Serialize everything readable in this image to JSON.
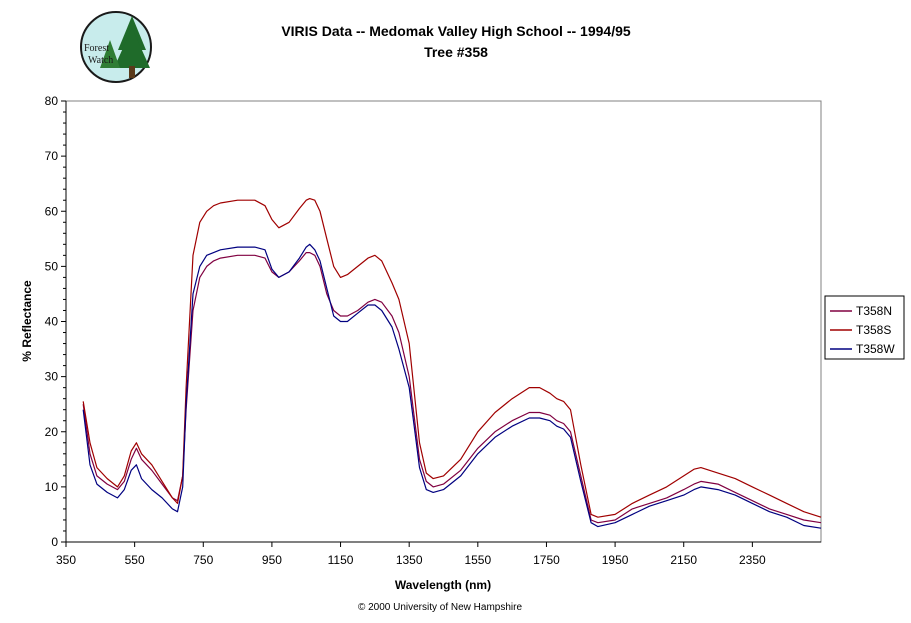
{
  "chart_data": {
    "type": "line",
    "title": "VIRIS Data -- Medomak Valley High School -- 1994/95",
    "subtitle": "Tree #358",
    "xlabel": "Wavelength (nm)",
    "ylabel": "% Reflectance",
    "xlim": [
      350,
      2550
    ],
    "ylim": [
      0,
      80
    ],
    "x_ticks": [
      "350",
      "550",
      "750",
      "950",
      "1150",
      "1350",
      "1550",
      "1750",
      "1950",
      "2150",
      "2350"
    ],
    "y_ticks": [
      "0",
      "10",
      "20",
      "30",
      "40",
      "50",
      "60",
      "70",
      "80"
    ],
    "grid": false,
    "legend_position": "right",
    "series": [
      {
        "name": "T358N",
        "color": "#800040",
        "x": [
          400,
          420,
          440,
          470,
          500,
          520,
          540,
          555,
          570,
          600,
          630,
          660,
          675,
          690,
          700,
          720,
          740,
          760,
          780,
          800,
          850,
          900,
          930,
          950,
          970,
          1000,
          1030,
          1050,
          1060,
          1075,
          1090,
          1110,
          1130,
          1150,
          1170,
          1200,
          1230,
          1250,
          1270,
          1300,
          1320,
          1350,
          1380,
          1400,
          1420,
          1450,
          1500,
          1550,
          1600,
          1650,
          1700,
          1730,
          1760,
          1780,
          1800,
          1820,
          1850,
          1880,
          1900,
          1950,
          2000,
          2050,
          2100,
          2150,
          2180,
          2200,
          2250,
          2300,
          2350,
          2400,
          2450,
          2500,
          2550
        ],
        "y": [
          25,
          16,
          12,
          10.5,
          9.5,
          11,
          15,
          17,
          15,
          13,
          10.5,
          8,
          7.5,
          12,
          24,
          42,
          48,
          50,
          51,
          51.5,
          52,
          52,
          51.5,
          49,
          48,
          49,
          51,
          52.5,
          52.5,
          52,
          50,
          45,
          42,
          41,
          41,
          42,
          43.5,
          44,
          43.5,
          41,
          38,
          30,
          15,
          11,
          10,
          10.5,
          13,
          17,
          20,
          22,
          23.5,
          23.5,
          23,
          22,
          21.5,
          20,
          12,
          4,
          3.5,
          4,
          6,
          7,
          8,
          9.5,
          10.5,
          11,
          10.5,
          9,
          7.5,
          6,
          5,
          4,
          3.5
        ]
      },
      {
        "name": "T358S",
        "color": "#a00000",
        "x": [
          400,
          420,
          440,
          470,
          500,
          520,
          540,
          555,
          570,
          600,
          630,
          660,
          675,
          690,
          700,
          720,
          740,
          760,
          780,
          800,
          850,
          900,
          930,
          950,
          970,
          1000,
          1030,
          1050,
          1060,
          1075,
          1090,
          1110,
          1130,
          1150,
          1170,
          1200,
          1230,
          1250,
          1270,
          1300,
          1320,
          1350,
          1380,
          1400,
          1420,
          1450,
          1500,
          1550,
          1600,
          1650,
          1700,
          1730,
          1760,
          1780,
          1800,
          1820,
          1850,
          1880,
          1900,
          1950,
          2000,
          2050,
          2100,
          2150,
          2180,
          2200,
          2250,
          2300,
          2350,
          2400,
          2450,
          2500,
          2550
        ],
        "y": [
          25.5,
          18,
          13.5,
          11.5,
          10,
          12,
          16.5,
          18,
          16,
          14,
          11,
          8,
          7,
          12,
          28,
          52,
          58,
          60,
          61,
          61.5,
          62,
          62,
          61,
          58.5,
          57,
          58,
          60.5,
          62,
          62.3,
          62,
          60,
          55,
          50,
          48,
          48.5,
          50,
          51.5,
          52,
          51,
          47,
          44,
          36,
          18,
          12.5,
          11.5,
          12,
          15,
          20,
          23.5,
          26,
          28,
          28,
          27,
          26,
          25.5,
          24,
          14,
          5,
          4.5,
          5,
          7,
          8.5,
          10,
          12,
          13.2,
          13.5,
          12.5,
          11.5,
          10,
          8.5,
          7,
          5.5,
          4.5
        ]
      },
      {
        "name": "T358W",
        "color": "#000080",
        "x": [
          400,
          420,
          440,
          470,
          500,
          520,
          540,
          555,
          570,
          600,
          630,
          660,
          675,
          690,
          700,
          720,
          740,
          760,
          780,
          800,
          850,
          900,
          930,
          950,
          970,
          1000,
          1030,
          1050,
          1060,
          1075,
          1090,
          1110,
          1130,
          1150,
          1170,
          1200,
          1230,
          1250,
          1270,
          1300,
          1320,
          1350,
          1380,
          1400,
          1420,
          1450,
          1500,
          1550,
          1600,
          1650,
          1700,
          1730,
          1760,
          1780,
          1800,
          1820,
          1850,
          1880,
          1900,
          1950,
          2000,
          2050,
          2100,
          2150,
          2180,
          2200,
          2250,
          2300,
          2350,
          2400,
          2450,
          2500,
          2550
        ],
        "y": [
          24,
          14,
          10.5,
          9,
          8,
          9.5,
          13,
          14,
          11.5,
          9.5,
          8,
          6,
          5.5,
          10,
          25,
          45,
          50,
          52,
          52.5,
          53,
          53.5,
          53.5,
          53,
          49.5,
          48,
          49,
          51.5,
          53.5,
          54,
          53,
          51,
          46,
          41,
          40,
          40,
          41.5,
          43,
          43,
          42,
          39,
          35,
          28,
          13.5,
          9.5,
          9,
          9.5,
          12,
          16,
          19,
          21,
          22.5,
          22.5,
          22,
          21,
          20.5,
          19,
          11,
          3.5,
          2.8,
          3.5,
          5,
          6.5,
          7.5,
          8.5,
          9.5,
          10,
          9.5,
          8.5,
          7,
          5.5,
          4.5,
          3,
          2.5
        ]
      }
    ],
    "copyright": "© 2000 University of New Hampshire",
    "logo_text": [
      "Forest",
      "Watch"
    ]
  }
}
